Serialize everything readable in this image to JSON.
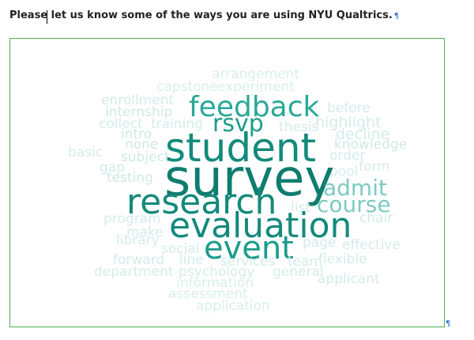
{
  "question": {
    "text": "Please let us know some of the ways you are using NYU Qualtrics.",
    "pilcrow": "¶"
  },
  "end_mark": "¶",
  "wordcloud": {
    "accent_colors": [
      "#138a7a",
      "#1b9c8a",
      "#2aa898",
      "#7ccbc0",
      "#c6e7e2"
    ],
    "words": [
      {
        "text": "arrangement",
        "color": "#d9efec"
      },
      {
        "text": "capstone",
        "color": "#d9efec"
      },
      {
        "text": "experiment",
        "color": "#d9efec"
      },
      {
        "text": "enrollment",
        "color": "#d4ecea"
      },
      {
        "text": "internship",
        "color": "#cfe9e5"
      },
      {
        "text": "collect",
        "color": "#d4ecea"
      },
      {
        "text": "training",
        "color": "#d4ecea"
      },
      {
        "text": "intro",
        "color": "#cfe9e5"
      },
      {
        "text": "none",
        "color": "#cfe9e5"
      },
      {
        "text": "basic",
        "color": "#d4ecea"
      },
      {
        "text": "subject",
        "color": "#cfe9e5"
      },
      {
        "text": "gap",
        "color": "#d4ecea"
      },
      {
        "text": "testing",
        "color": "#cfe9e5"
      },
      {
        "text": "feedback",
        "color": "#2aa898"
      },
      {
        "text": "before",
        "color": "#d4ecea"
      },
      {
        "text": "highlight",
        "color": "#d4ecea"
      },
      {
        "text": "rsvp",
        "color": "#1b9c8a"
      },
      {
        "text": "thesis",
        "color": "#d4ecea"
      },
      {
        "text": "decline",
        "color": "#d4ecea"
      },
      {
        "text": "knowledge",
        "color": "#cfe9e5"
      },
      {
        "text": "order",
        "color": "#d4ecea"
      },
      {
        "text": "student",
        "color": "#138a7a"
      },
      {
        "text": "form",
        "color": "#d4ecea"
      },
      {
        "text": "pool",
        "color": "#d4ecea"
      },
      {
        "text": "survey",
        "color": "#0f7d6e"
      },
      {
        "text": "admit",
        "color": "#7ccbc0"
      },
      {
        "text": "research",
        "color": "#138a7a"
      },
      {
        "text": "course",
        "color": "#7ccbc0"
      },
      {
        "text": "list",
        "color": "#d4ecea"
      },
      {
        "text": "chair",
        "color": "#d4ecea"
      },
      {
        "text": "program",
        "color": "#d4ecea"
      },
      {
        "text": "make",
        "color": "#d4ecea"
      },
      {
        "text": "evaluation",
        "color": "#138a7a"
      },
      {
        "text": "library",
        "color": "#d4ecea"
      },
      {
        "text": "social",
        "color": "#d4ecea"
      },
      {
        "text": "event",
        "color": "#1b9c8a"
      },
      {
        "text": "page",
        "color": "#d4ecea"
      },
      {
        "text": "effective",
        "color": "#d4ecea"
      },
      {
        "text": "forward",
        "color": "#d4ecea"
      },
      {
        "text": "line",
        "color": "#d4ecea"
      },
      {
        "text": "services",
        "color": "#d4ecea"
      },
      {
        "text": "team",
        "color": "#d4ecea"
      },
      {
        "text": "flexible",
        "color": "#d4ecea"
      },
      {
        "text": "department",
        "color": "#d4ecea"
      },
      {
        "text": "psychology",
        "color": "#d4ecea"
      },
      {
        "text": "general",
        "color": "#d4ecea"
      },
      {
        "text": "applicant",
        "color": "#d4ecea"
      },
      {
        "text": "information",
        "color": "#d9efec"
      },
      {
        "text": "assessment",
        "color": "#d9efec"
      },
      {
        "text": "application",
        "color": "#d9efec"
      }
    ]
  }
}
